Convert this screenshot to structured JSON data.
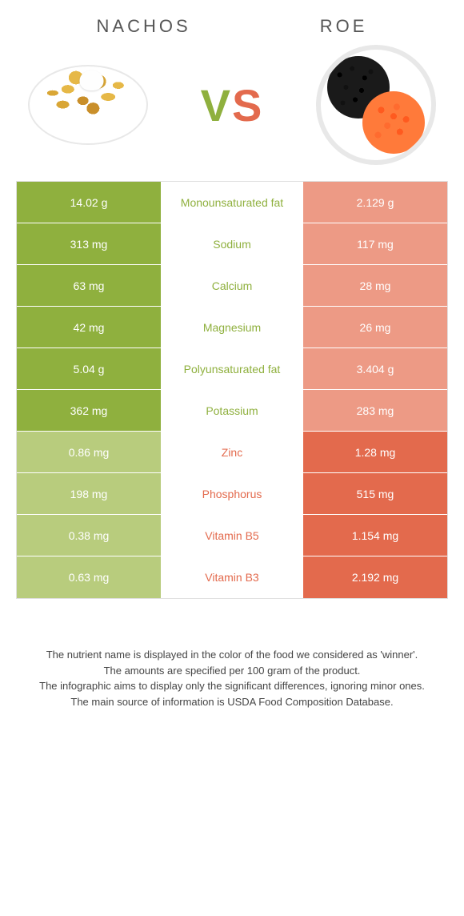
{
  "header": {
    "left_name": "Nachos",
    "right_name": "Roe",
    "vs_v": "V",
    "vs_s": "S"
  },
  "colors": {
    "leftWinner": "#8fb03e",
    "leftLoser": "#b8cc7d",
    "rightWinner": "#e36a4d",
    "rightLoser": "#ed9a85",
    "labelLeftWin": "#8fb03e",
    "labelRightWin": "#e36a4d"
  },
  "rows": [
    {
      "nutrient": "Monounsaturated fat",
      "left": "14.02 g",
      "right": "2.129 g",
      "winner": "left"
    },
    {
      "nutrient": "Sodium",
      "left": "313 mg",
      "right": "117 mg",
      "winner": "left"
    },
    {
      "nutrient": "Calcium",
      "left": "63 mg",
      "right": "28 mg",
      "winner": "left"
    },
    {
      "nutrient": "Magnesium",
      "left": "42 mg",
      "right": "26 mg",
      "winner": "left"
    },
    {
      "nutrient": "Polyunsaturated fat",
      "left": "5.04 g",
      "right": "3.404 g",
      "winner": "left"
    },
    {
      "nutrient": "Potassium",
      "left": "362 mg",
      "right": "283 mg",
      "winner": "left"
    },
    {
      "nutrient": "Zinc",
      "left": "0.86 mg",
      "right": "1.28 mg",
      "winner": "right"
    },
    {
      "nutrient": "Phosphorus",
      "left": "198 mg",
      "right": "515 mg",
      "winner": "right"
    },
    {
      "nutrient": "Vitamin B5",
      "left": "0.38 mg",
      "right": "1.154 mg",
      "winner": "right"
    },
    {
      "nutrient": "Vitamin B3",
      "left": "0.63 mg",
      "right": "2.192 mg",
      "winner": "right"
    }
  ],
  "footer": {
    "line1": "The nutrient name is displayed in the color of the food we considered as 'winner'.",
    "line2": "The amounts are specified per 100 gram of the product.",
    "line3": "The infographic aims to display only the significant differences, ignoring minor ones.",
    "line4": "The main source of information is USDA Food Composition Database."
  }
}
